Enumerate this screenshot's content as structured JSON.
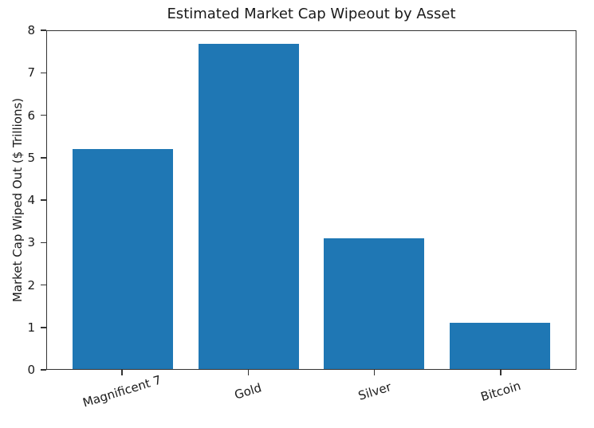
{
  "chart_data": {
    "type": "bar",
    "title": "Estimated Market Cap Wipeout by Asset",
    "xlabel": "",
    "ylabel": "Market Cap Wiped Out ($ Trillions)",
    "categories": [
      "Magnificent 7",
      "Gold",
      "Silver",
      "Bitcoin"
    ],
    "values": [
      5.2,
      7.7,
      3.1,
      1.1
    ],
    "ylim": [
      0,
      8
    ],
    "yticks": [
      0,
      1,
      2,
      3,
      4,
      5,
      6,
      7,
      8
    ],
    "bar_color": "#1f77b4",
    "axis_color": "#333333",
    "text_color": "#1a1a1a",
    "background_color": "#ffffff",
    "grid": false,
    "legend_position": "none",
    "x_tick_rotation_deg": 17
  }
}
